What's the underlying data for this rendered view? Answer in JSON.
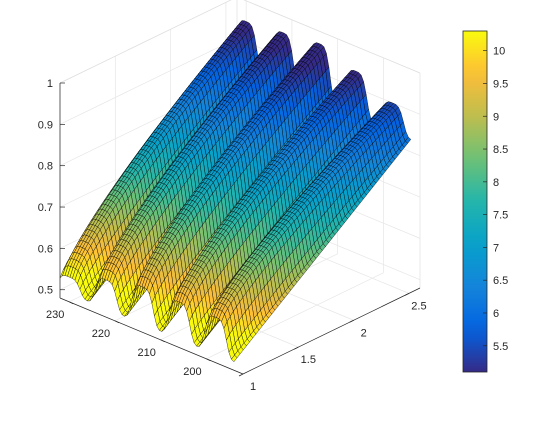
{
  "chart_data": {
    "type": "surface",
    "title": "",
    "xlabel": "",
    "ylabel": "",
    "zlabel": "",
    "x_ticks": [
      "1",
      "1.5",
      "2",
      "2.5"
    ],
    "y_ticks": [
      "200",
      "210",
      "220",
      "230"
    ],
    "z_ticks": [
      "0.5",
      "0.6",
      "0.7",
      "0.8",
      "0.9",
      "1"
    ],
    "xlim": [
      1,
      2.6
    ],
    "ylim": [
      192,
      232
    ],
    "zlim": [
      0.48,
      1.0
    ],
    "colormap": "parula",
    "colorbar": {
      "ticks": [
        "5.5",
        "6",
        "6.5",
        "7",
        "7.5",
        "8",
        "8.5",
        "9",
        "9.5",
        "10"
      ],
      "range": [
        5.1,
        10.3
      ]
    },
    "ridges": {
      "count": 5,
      "y_centers": [
        230,
        222,
        214,
        206,
        198
      ],
      "z_at_x_min": [
        0.54,
        0.57,
        0.59,
        0.59,
        0.59
      ],
      "z_at_x_max": [
        0.95,
        0.96,
        0.97,
        0.94,
        0.9
      ],
      "trough_z_at_x_min": 0.5,
      "trough_z_at_x_max": 0.83
    },
    "grid": true,
    "box": "3d-open"
  }
}
